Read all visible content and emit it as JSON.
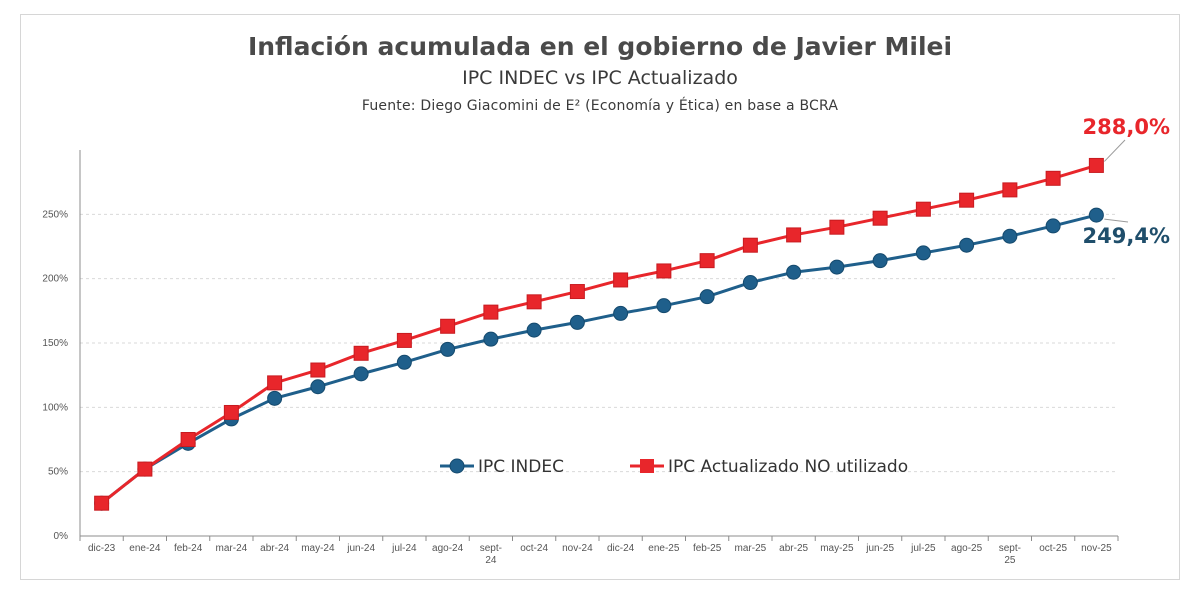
{
  "chart_data": {
    "type": "line",
    "title": "Inflación acumulada en el gobierno de Javier Milei",
    "subtitle": "IPC INDEC vs IPC Actualizado",
    "source": "Fuente: Diego Giacomini de E² (Economía y Ética) en base a BCRA",
    "categories": [
      "dic-23",
      "ene-24",
      "feb-24",
      "mar-24",
      "abr-24",
      "may-24",
      "jun-24",
      "jul-24",
      "ago-24",
      "sept-\n24",
      "oct-24",
      "nov-24",
      "dic-24",
      "ene-25",
      "feb-25",
      "mar-25",
      "abr-25",
      "may-25",
      "jun-25",
      "jul-25",
      "ago-25",
      "sept-\n25",
      "oct-25",
      "nov-25"
    ],
    "y_ticks": [
      "0%",
      "50%",
      "100%",
      "150%",
      "200%",
      "250%"
    ],
    "ylim": [
      0,
      300
    ],
    "grid": true,
    "legend_position": "center",
    "series": [
      {
        "name": "IPC INDEC",
        "color": "#1f5f8b",
        "marker": "circle",
        "values": [
          25.5,
          52,
          72,
          91,
          107,
          116,
          126,
          135,
          145,
          153,
          160,
          166,
          173,
          179,
          186,
          197,
          205,
          209,
          214,
          220,
          226,
          233,
          241,
          249.4
        ]
      },
      {
        "name": "IPC Actualizado NO utilizado",
        "color": "#e8262b",
        "marker": "square",
        "values": [
          25.5,
          52,
          75,
          96,
          119,
          129,
          142,
          152,
          163,
          174,
          182,
          190,
          199,
          206,
          214,
          226,
          234,
          240,
          247,
          254,
          261,
          269,
          278,
          288
        ]
      }
    ],
    "annotations": [
      {
        "text": "288,0%",
        "series": "IPC Actualizado NO utilizado",
        "color": "#e8262b"
      },
      {
        "text": "249,4%",
        "series": "IPC INDEC",
        "color": "#1f4e6b"
      }
    ]
  }
}
